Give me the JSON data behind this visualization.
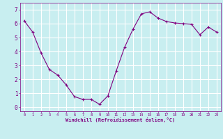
{
  "x": [
    0,
    1,
    2,
    3,
    4,
    5,
    6,
    7,
    8,
    9,
    10,
    11,
    12,
    13,
    14,
    15,
    16,
    17,
    18,
    19,
    20,
    21,
    22,
    23
  ],
  "y": [
    6.2,
    5.4,
    3.9,
    2.7,
    2.3,
    1.6,
    0.75,
    0.55,
    0.55,
    0.2,
    0.8,
    2.6,
    4.3,
    5.6,
    6.7,
    6.85,
    6.4,
    6.15,
    6.05,
    6.0,
    5.95,
    5.2,
    5.75,
    5.4
  ],
  "line_color": "#800080",
  "marker_color": "#800080",
  "bg_color": "#c8eef0",
  "grid_color": "#ffffff",
  "xlabel": "Windchill (Refroidissement éolien,°C)",
  "xlabel_color": "#800080",
  "tick_label_color": "#800080",
  "xlim": [
    -0.5,
    23.5
  ],
  "ylim": [
    -0.3,
    7.5
  ],
  "yticks": [
    0,
    1,
    2,
    3,
    4,
    5,
    6,
    7
  ],
  "xticks": [
    0,
    1,
    2,
    3,
    4,
    5,
    6,
    7,
    8,
    9,
    10,
    11,
    12,
    13,
    14,
    15,
    16,
    17,
    18,
    19,
    20,
    21,
    22,
    23
  ]
}
